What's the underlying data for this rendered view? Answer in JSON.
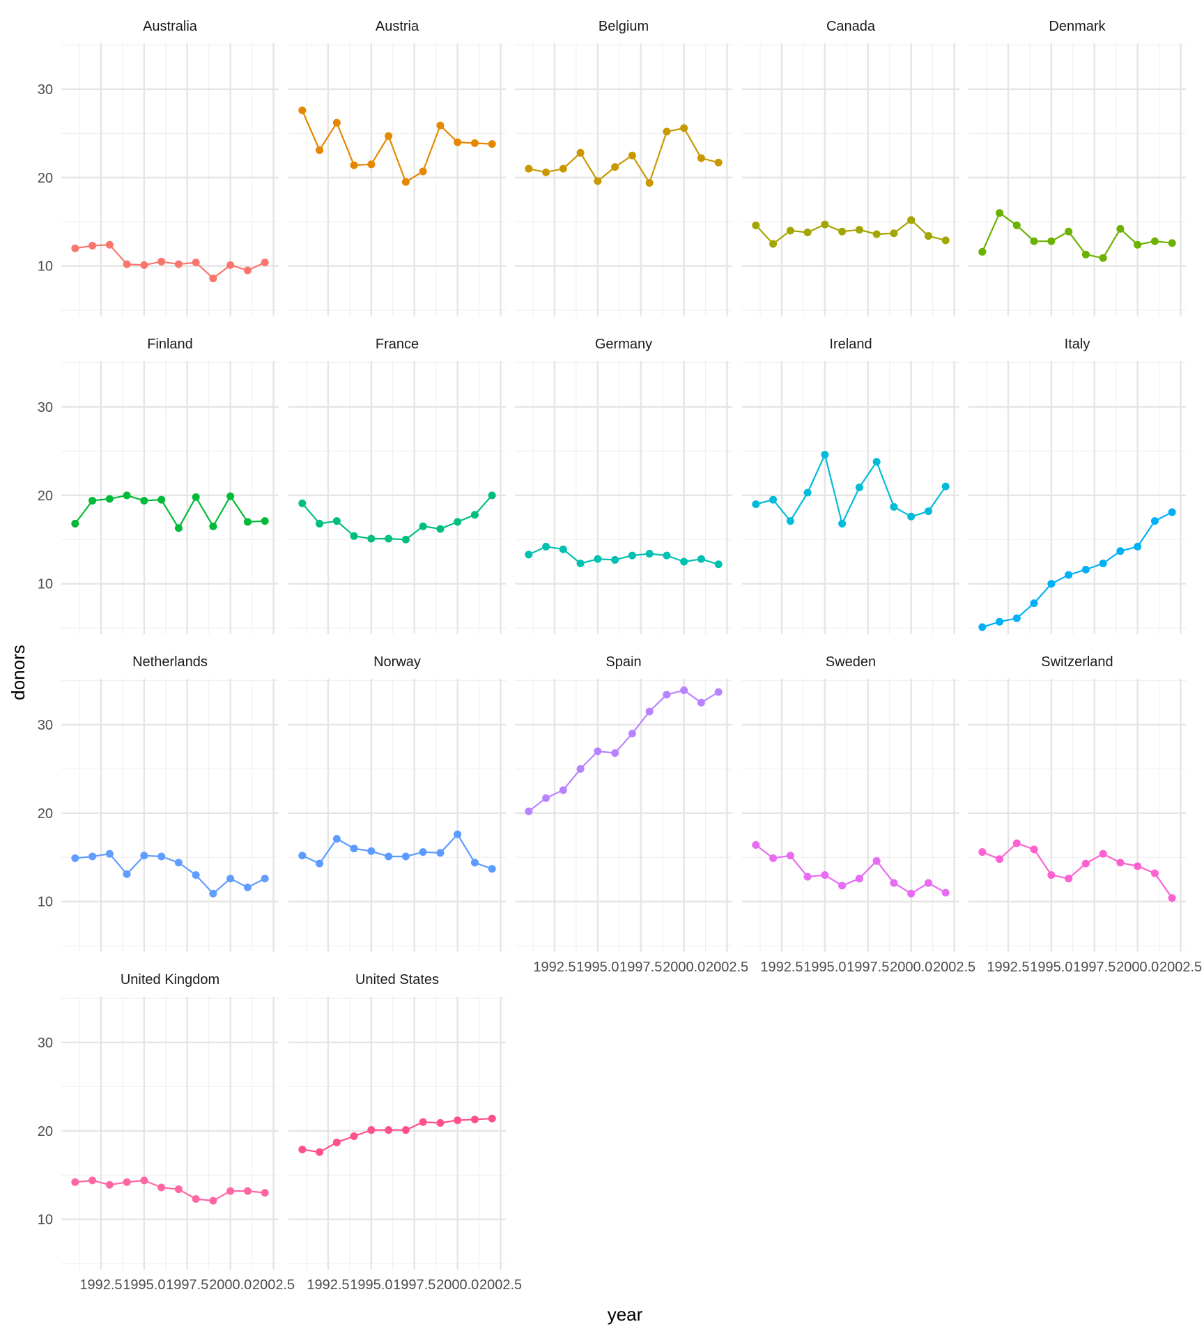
{
  "chart_data": {
    "type": "line",
    "facet_by": "country",
    "xlabel": "year",
    "ylabel": "donors",
    "xlim": [
      1990.2,
      2002.8
    ],
    "ylim": [
      4.3,
      35.2
    ],
    "x_ticks": [
      1992.5,
      1995.0,
      1997.5,
      2000.0,
      2002.5
    ],
    "x_tick_labels": [
      "1992.5",
      "1995.0",
      "1997.5",
      "2000.0",
      "2002.5"
    ],
    "y_ticks": [
      10,
      20,
      30
    ],
    "y_tick_labels": [
      "10",
      "20",
      "30"
    ],
    "grid": true,
    "legend": "none",
    "panels": [
      {
        "name": "Australia",
        "color": "#F8766D",
        "x": [
          1991,
          1992,
          1993,
          1994,
          1995,
          1996,
          1997,
          1998,
          1999,
          2000,
          2001,
          2002
        ],
        "values": [
          12.0,
          12.3,
          12.4,
          10.2,
          10.1,
          10.5,
          10.2,
          10.4,
          8.6,
          10.1,
          9.5,
          10.4
        ]
      },
      {
        "name": "Austria",
        "color": "#E58700",
        "x": [
          1991,
          1992,
          1993,
          1994,
          1995,
          1996,
          1997,
          1998,
          1999,
          2000,
          2001,
          2002
        ],
        "values": [
          27.6,
          23.1,
          26.2,
          21.4,
          21.5,
          24.7,
          19.5,
          20.7,
          25.9,
          24.0,
          23.9,
          23.8
        ]
      },
      {
        "name": "Belgium",
        "color": "#C99800",
        "x": [
          1991,
          1992,
          1993,
          1994,
          1995,
          1996,
          1997,
          1998,
          1999,
          2000,
          2001,
          2002
        ],
        "values": [
          21.0,
          20.6,
          21.0,
          22.8,
          19.6,
          21.2,
          22.5,
          19.4,
          25.2,
          25.6,
          22.2,
          21.7
        ]
      },
      {
        "name": "Canada",
        "color": "#A3A500",
        "x": [
          1991,
          1992,
          1993,
          1994,
          1995,
          1996,
          1997,
          1998,
          1999,
          2000,
          2001,
          2002
        ],
        "values": [
          14.6,
          12.5,
          14.0,
          13.8,
          14.7,
          13.9,
          14.1,
          13.6,
          13.7,
          15.2,
          13.4,
          12.9
        ]
      },
      {
        "name": "Denmark",
        "color": "#6BB100",
        "x": [
          1991,
          1992,
          1993,
          1994,
          1995,
          1996,
          1997,
          1998,
          1999,
          2000,
          2001,
          2002
        ],
        "values": [
          11.6,
          16.0,
          14.6,
          12.8,
          12.8,
          13.9,
          11.3,
          10.9,
          14.2,
          12.4,
          12.8,
          12.6
        ]
      },
      {
        "name": "Finland",
        "color": "#00BA38",
        "x": [
          1991,
          1992,
          1993,
          1994,
          1995,
          1996,
          1997,
          1998,
          1999,
          2000,
          2001,
          2002
        ],
        "values": [
          16.8,
          19.4,
          19.6,
          20.0,
          19.4,
          19.5,
          16.3,
          19.8,
          16.5,
          19.9,
          17.0,
          17.1
        ]
      },
      {
        "name": "France",
        "color": "#00BF7D",
        "x": [
          1991,
          1992,
          1993,
          1994,
          1995,
          1996,
          1997,
          1998,
          1999,
          2000,
          2001,
          2002
        ],
        "values": [
          19.1,
          16.8,
          17.1,
          15.4,
          15.1,
          15.1,
          15.0,
          16.5,
          16.2,
          17.0,
          17.8,
          20.0
        ]
      },
      {
        "name": "Germany",
        "color": "#00C0AF",
        "x": [
          1991,
          1992,
          1993,
          1994,
          1995,
          1996,
          1997,
          1998,
          1999,
          2000,
          2001,
          2002
        ],
        "values": [
          13.3,
          14.2,
          13.9,
          12.3,
          12.8,
          12.7,
          13.2,
          13.4,
          13.2,
          12.5,
          12.8,
          12.2
        ]
      },
      {
        "name": "Ireland",
        "color": "#00BCD8",
        "x": [
          1991,
          1992,
          1993,
          1994,
          1995,
          1996,
          1997,
          1998,
          1999,
          2000,
          2001,
          2002
        ],
        "values": [
          19.0,
          19.5,
          17.1,
          20.3,
          24.6,
          16.8,
          20.9,
          23.8,
          18.7,
          17.6,
          18.2,
          21.0
        ]
      },
      {
        "name": "Italy",
        "color": "#00B0F6",
        "x": [
          1991,
          1992,
          1993,
          1994,
          1995,
          1996,
          1997,
          1998,
          1999,
          2000,
          2001,
          2002
        ],
        "values": [
          5.1,
          5.7,
          6.1,
          7.8,
          10.0,
          11.0,
          11.6,
          12.3,
          13.7,
          14.2,
          17.1,
          18.1
        ]
      },
      {
        "name": "Netherlands",
        "color": "#619CFF",
        "x": [
          1991,
          1992,
          1993,
          1994,
          1995,
          1996,
          1997,
          1998,
          1999,
          2000,
          2001,
          2002
        ],
        "values": [
          14.9,
          15.1,
          15.4,
          13.1,
          15.2,
          15.1,
          14.4,
          13.0,
          10.9,
          12.6,
          11.6,
          12.6
        ]
      },
      {
        "name": "Norway",
        "color": "#5B9BFF",
        "x": [
          1991,
          1992,
          1993,
          1994,
          1995,
          1996,
          1997,
          1998,
          1999,
          2000,
          2001,
          2002
        ],
        "values": [
          15.2,
          14.3,
          17.1,
          16.0,
          15.7,
          15.1,
          15.1,
          15.6,
          15.5,
          17.6,
          14.4,
          13.7
        ]
      },
      {
        "name": "Spain",
        "color": "#B983FF",
        "x": [
          1991,
          1992,
          1993,
          1994,
          1995,
          1996,
          1997,
          1998,
          1999,
          2000,
          2001,
          2002
        ],
        "values": [
          20.2,
          21.7,
          22.6,
          25.0,
          27.0,
          26.8,
          29.0,
          31.5,
          33.4,
          33.9,
          32.5,
          33.7
        ]
      },
      {
        "name": "Sweden",
        "color": "#E76BF3",
        "x": [
          1991,
          1992,
          1993,
          1994,
          1995,
          1996,
          1997,
          1998,
          1999,
          2000,
          2001,
          2002
        ],
        "values": [
          16.4,
          14.9,
          15.2,
          12.8,
          13.0,
          11.8,
          12.6,
          14.6,
          12.1,
          10.9,
          12.1,
          11.0
        ]
      },
      {
        "name": "Switzerland",
        "color": "#FD61D1",
        "x": [
          1991,
          1992,
          1993,
          1994,
          1995,
          1996,
          1997,
          1998,
          1999,
          2000,
          2001,
          2002
        ],
        "values": [
          15.6,
          14.8,
          16.6,
          15.9,
          13.0,
          12.6,
          14.3,
          15.4,
          14.4,
          14.0,
          13.2,
          10.4
        ]
      },
      {
        "name": "United Kingdom",
        "color": "#FF67A4",
        "x": [
          1991,
          1992,
          1993,
          1994,
          1995,
          1996,
          1997,
          1998,
          1999,
          2000,
          2001,
          2002
        ],
        "values": [
          14.2,
          14.4,
          13.9,
          14.2,
          14.4,
          13.6,
          13.4,
          12.3,
          12.1,
          13.2,
          13.2,
          13.0
        ]
      },
      {
        "name": "United States",
        "color": "#FF4F8F",
        "x": [
          1991,
          1992,
          1993,
          1994,
          1995,
          1996,
          1997,
          1998,
          1999,
          2000,
          2001,
          2002
        ],
        "values": [
          17.9,
          17.6,
          18.7,
          19.4,
          20.1,
          20.1,
          20.1,
          21.0,
          20.9,
          21.2,
          21.3,
          21.4
        ]
      }
    ]
  }
}
